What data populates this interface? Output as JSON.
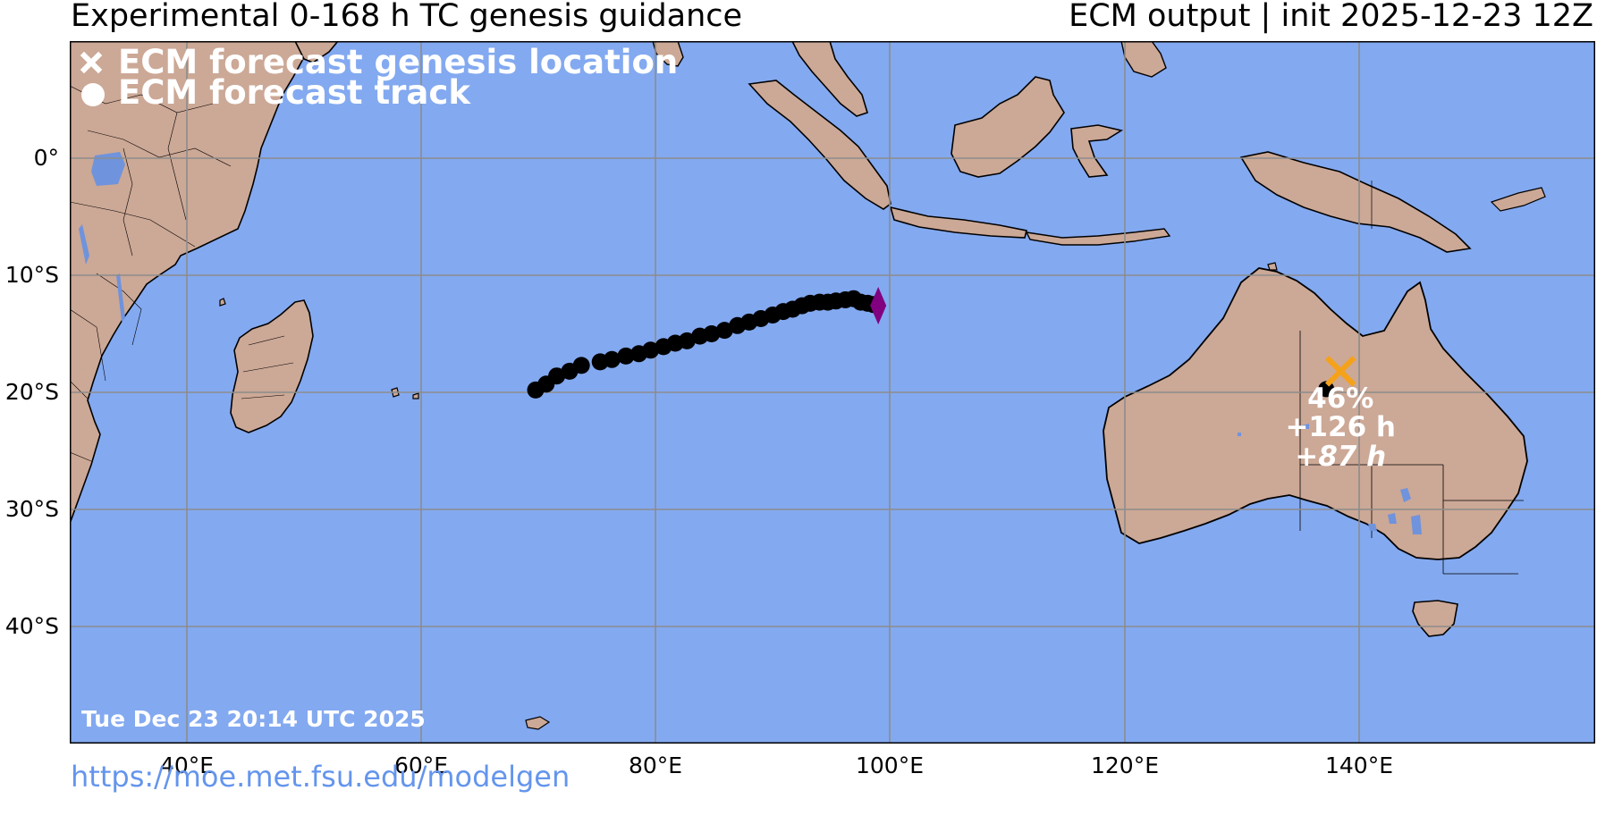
{
  "header": {
    "title_left": "Experimental 0-168 h TC genesis guidance",
    "title_right": "ECM output | init 2025-12-23 12Z"
  },
  "legend": {
    "genesis_label": "ECM forecast genesis location",
    "track_label": "ECM forecast track"
  },
  "timestamp": "Tue Dec 23 20:14 UTC 2025",
  "url": "https://moe.met.fsu.edu/modelgen",
  "axes": {
    "lat_labels": [
      "0°",
      "10°S",
      "20°S",
      "30°S",
      "40°S"
    ],
    "lon_labels": [
      "40°E",
      "60°E",
      "80°E",
      "100°E",
      "120°E",
      "140°E"
    ]
  },
  "genesis": {
    "probability": "46%",
    "lead_time": "+126 h",
    "secondary_time": "+87 h",
    "lon": 138.3,
    "lat": -18.2
  },
  "track_points": [
    [
      69.7,
      -19.8
    ],
    [
      70.6,
      -19.3
    ],
    [
      71.5,
      -18.6
    ],
    [
      72.6,
      -18.2
    ],
    [
      73.6,
      -17.7
    ],
    [
      75.2,
      -17.4
    ],
    [
      76.2,
      -17.2
    ],
    [
      77.4,
      -16.9
    ],
    [
      78.5,
      -16.7
    ],
    [
      79.5,
      -16.4
    ],
    [
      80.6,
      -16.1
    ],
    [
      81.6,
      -15.8
    ],
    [
      82.6,
      -15.6
    ],
    [
      83.7,
      -15.2
    ],
    [
      84.7,
      -15.0
    ],
    [
      85.8,
      -14.7
    ],
    [
      86.9,
      -14.3
    ],
    [
      87.9,
      -14.0
    ],
    [
      88.9,
      -13.7
    ],
    [
      89.9,
      -13.4
    ],
    [
      90.8,
      -13.1
    ],
    [
      91.6,
      -12.9
    ],
    [
      92.4,
      -12.6
    ],
    [
      93.1,
      -12.4
    ],
    [
      93.9,
      -12.3
    ],
    [
      94.6,
      -12.3
    ],
    [
      95.3,
      -12.2
    ],
    [
      96.1,
      -12.1
    ],
    [
      96.8,
      -12.0
    ],
    [
      97.4,
      -12.3
    ],
    [
      98.0,
      -12.4
    ],
    [
      98.5,
      -12.5
    ]
  ],
  "track_end_diamond": {
    "lon": 98.9,
    "lat": -12.6
  },
  "colors": {
    "ocean": "#83a9f0",
    "land": "#cca896",
    "lake": "#6f93dc",
    "genesis_marker": "#f5a21b",
    "diamond": "#800080",
    "track": "#000000",
    "grid": "#8c8c8c"
  },
  "map_extent": {
    "lon_min": 30,
    "lon_max": 160,
    "lat_max": 10,
    "lat_min": -50
  }
}
